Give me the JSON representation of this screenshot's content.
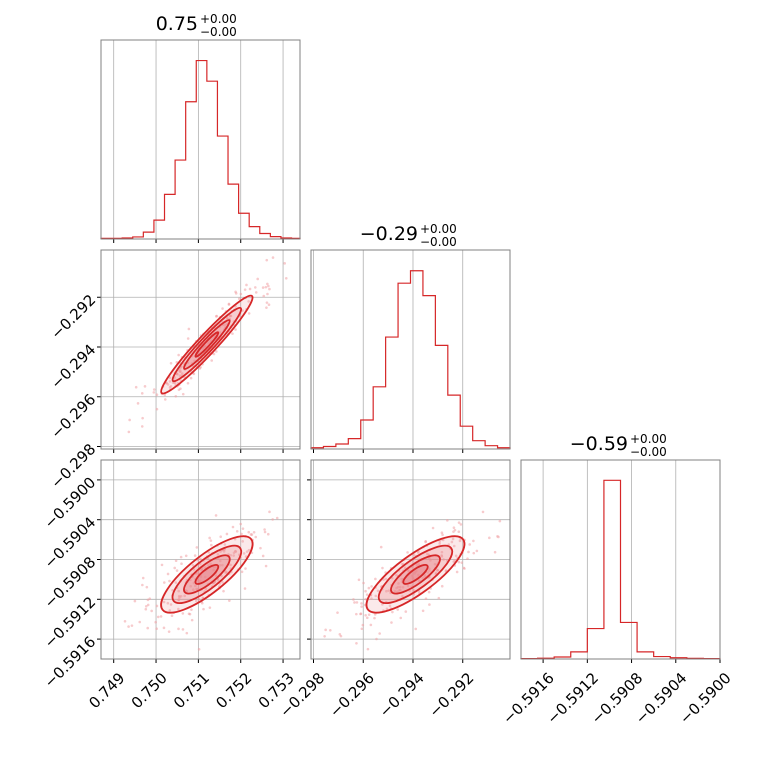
{
  "colors": {
    "line": "#d62728",
    "fill": "#e8848a",
    "scatter": "#f0a0a4",
    "grid": "#b0b0b0",
    "frame": "#808080"
  },
  "chart_data": [
    {
      "type": "histogram",
      "panel": [
        0,
        0
      ],
      "title_value": "0.75",
      "title_plus": "+0.00",
      "title_minus": "−0.00",
      "xlim": [
        0.7487,
        0.7534
      ],
      "xticks": [
        0.749,
        0.75,
        0.751,
        0.752,
        0.753
      ],
      "bins": [
        0.7487,
        0.74895,
        0.7492,
        0.74945,
        0.7497,
        0.74995,
        0.7502,
        0.75045,
        0.7507,
        0.75095,
        0.7512,
        0.75145,
        0.7517,
        0.75195,
        0.7522,
        0.75245,
        0.7527,
        0.75295,
        0.7532,
        0.7534
      ],
      "counts": [
        2,
        2,
        3,
        6,
        20,
        55,
        130,
        230,
        400,
        520,
        460,
        300,
        160,
        75,
        36,
        16,
        7,
        3,
        2
      ],
      "ylim": [
        0,
        580
      ]
    },
    {
      "type": "histogram",
      "panel": [
        1,
        1
      ],
      "title_value": "−0.29",
      "title_plus": "+0.00",
      "title_minus": "−0.00",
      "xlim": [
        -0.2981,
        -0.2901
      ],
      "xticks": [
        -0.298,
        -0.296,
        -0.294,
        -0.292
      ],
      "bins": [
        -0.2981,
        -0.2976,
        -0.2971,
        -0.2966,
        -0.2961,
        -0.2956,
        -0.2951,
        -0.2946,
        -0.2941,
        -0.2936,
        -0.2931,
        -0.2926,
        -0.2921,
        -0.2916,
        -0.2911,
        -0.2906,
        -0.2901
      ],
      "counts": [
        3,
        6,
        12,
        25,
        70,
        150,
        270,
        400,
        430,
        370,
        250,
        130,
        55,
        20,
        8,
        3
      ],
      "ylim": [
        0,
        480
      ]
    },
    {
      "type": "histogram",
      "panel": [
        2,
        2
      ],
      "title_value": "−0.59",
      "title_plus": "+0.00",
      "title_minus": "−0.00",
      "xlim": [
        -0.5918,
        -0.59
      ],
      "xticks": [
        -0.5916,
        -0.5912,
        -0.5908,
        -0.5904,
        -0.59
      ],
      "bins": [
        -0.5918,
        -0.59165,
        -0.5915,
        -0.59135,
        -0.5912,
        -0.59105,
        -0.5909,
        -0.59075,
        -0.5906,
        -0.59045,
        -0.5903,
        -0.59015,
        -0.59
      ],
      "counts": [
        2,
        4,
        10,
        35,
        150,
        880,
        180,
        35,
        12,
        6,
        3,
        2
      ],
      "ylim": [
        0,
        980
      ]
    },
    {
      "type": "contour_scatter",
      "panel": [
        1,
        0
      ],
      "x_param": 0,
      "y_param": 1,
      "xlim": [
        0.7487,
        0.7534
      ],
      "ylim": [
        -0.2981,
        -0.2901
      ],
      "xticks": [
        0.749,
        0.75,
        0.751,
        0.752,
        0.753
      ],
      "yticks": [
        -0.298,
        -0.296,
        -0.294,
        -0.292
      ],
      "center": [
        0.7512,
        -0.2939
      ],
      "sigma_x": 0.00045,
      "sigma_y": 0.00082,
      "correlation": 0.96
    },
    {
      "type": "contour_scatter",
      "panel": [
        2,
        0
      ],
      "x_param": 0,
      "y_param": 2,
      "xlim": [
        0.7487,
        0.7534
      ],
      "ylim": [
        -0.5918,
        -0.5898
      ],
      "xticks": [
        0.749,
        0.75,
        0.751,
        0.752,
        0.753
      ],
      "yticks": [
        -0.5916,
        -0.5912,
        -0.5908,
        -0.5904,
        -0.59
      ],
      "center": [
        0.7512,
        -0.59095
      ],
      "sigma_x": 0.00045,
      "sigma_y": 0.00016,
      "correlation": 0.8
    },
    {
      "type": "contour_scatter",
      "panel": [
        2,
        1
      ],
      "x_param": 1,
      "y_param": 2,
      "xlim": [
        -0.2981,
        -0.2901
      ],
      "ylim": [
        -0.5918,
        -0.5898
      ],
      "xticks": [
        -0.298,
        -0.296,
        -0.294,
        -0.292
      ],
      "yticks": [
        -0.5916,
        -0.5912,
        -0.5908,
        -0.5904,
        -0.59
      ],
      "center": [
        -0.2939,
        -0.59095
      ],
      "sigma_x": 0.00082,
      "sigma_y": 0.00016,
      "correlation": 0.8
    }
  ],
  "tick_labels": {
    "x0": [
      "0.749",
      "0.750",
      "0.751",
      "0.752",
      "0.753"
    ],
    "x1": [
      "−0.298",
      "−0.296",
      "−0.294",
      "−0.292"
    ],
    "x2": [
      "−0.5916",
      "−0.5912",
      "−0.5908",
      "−0.5904",
      "−0.5900"
    ],
    "y1": [
      "−0.298",
      "−0.296",
      "−0.294",
      "−0.292"
    ],
    "y2": [
      "−0.5916",
      "−0.5912",
      "−0.5908",
      "−0.5904",
      "−0.5900"
    ]
  }
}
